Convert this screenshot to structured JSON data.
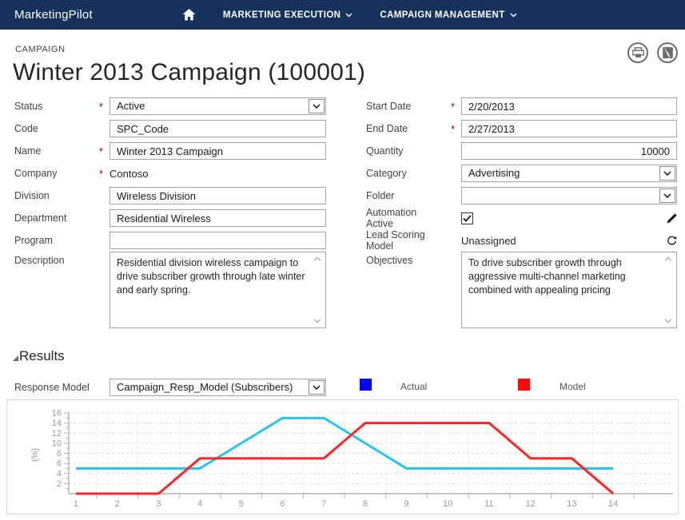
{
  "navbar": {
    "brand": "MarketingPilot",
    "menus": [
      {
        "label": "MARKETING EXECUTION"
      },
      {
        "label": "CAMPAIGN MANAGEMENT"
      }
    ]
  },
  "header": {
    "kicker": "CAMPAIGN",
    "title": "Winter 2013 Campaign (100001)"
  },
  "form": {
    "left": {
      "status": {
        "label": "Status",
        "required": true,
        "value": "Active"
      },
      "code": {
        "label": "Code",
        "value": "SPC_Code"
      },
      "name": {
        "label": "Name",
        "required": true,
        "value": "Winter 2013 Campaign"
      },
      "company": {
        "label": "Company",
        "required": true,
        "value": "Contoso"
      },
      "division": {
        "label": "Division",
        "value": "Wireless Division"
      },
      "department": {
        "label": "Department",
        "value": "Residential Wireless"
      },
      "program": {
        "label": "Program",
        "value": ""
      },
      "description": {
        "label": "Description",
        "value": "Residential division wireless campaign to drive subscriber growth through late winter and early spring."
      }
    },
    "right": {
      "start_date": {
        "label": "Start Date",
        "required": true,
        "value": "2/20/2013"
      },
      "end_date": {
        "label": "End Date",
        "required": true,
        "value": "2/27/2013"
      },
      "quantity": {
        "label": "Quantity",
        "value": "10000"
      },
      "category": {
        "label": "Category",
        "value": "Advertising"
      },
      "folder": {
        "label": "Folder",
        "value": ""
      },
      "automation_active": {
        "label": "Automation Active",
        "checked": true
      },
      "lead_scoring_model": {
        "label": "Lead Scoring Model",
        "value": "Unassigned"
      },
      "objectives": {
        "label": "Objectives",
        "value": "To drive subscriber growth through aggressive multi-channel marketing combined with appealing pricing"
      }
    }
  },
  "results": {
    "title": "Results",
    "response_model": {
      "label": "Response Model",
      "value": "Campaign_Resp_Model (Subscribers)"
    },
    "legend": [
      {
        "label": "Actual",
        "color": "#0505ee"
      },
      {
        "label": "Model",
        "color": "#fb0a0a"
      }
    ]
  },
  "chart_data": {
    "type": "line",
    "x": [
      1,
      2,
      3,
      4,
      5,
      6,
      7,
      8,
      9,
      10,
      11,
      12,
      13,
      14
    ],
    "series": [
      {
        "name": "Actual",
        "color": "#2bc3e8",
        "values": [
          5,
          5,
          5,
          5,
          10,
          15,
          15,
          10,
          5,
          5,
          5,
          5,
          5,
          5
        ]
      },
      {
        "name": "Model",
        "color": "#fd2626",
        "values": [
          0,
          0,
          0,
          7,
          7,
          7,
          7,
          14,
          14,
          14,
          14,
          7,
          7,
          0
        ]
      }
    ],
    "title": "",
    "xlabel": "",
    "ylabel": "(%)",
    "ylim": [
      0,
      16
    ],
    "ytick_step": 2,
    "grid": true,
    "legend_position": "top"
  }
}
